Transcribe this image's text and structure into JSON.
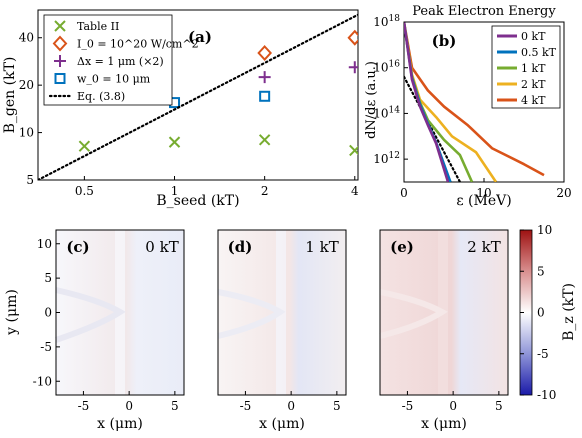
{
  "chart_data": [
    {
      "panel": "(a)",
      "type": "scatter",
      "xlabel": "B_seed (kT)",
      "ylabel": "B_gen (kT)",
      "x_scale": "log",
      "y_scale": "log",
      "xlim": [
        0.35,
        4.1
      ],
      "ylim": [
        5,
        60
      ],
      "x_ticks": [
        0.5,
        1,
        2,
        4
      ],
      "y_ticks": [
        5,
        10,
        20,
        40
      ],
      "legend_position": "top-left",
      "series": [
        {
          "name": "Table II",
          "marker": "x",
          "color": "#77ac30",
          "x": [
            0.5,
            1,
            2,
            4
          ],
          "y": [
            8.2,
            8.7,
            9.0,
            7.7
          ]
        },
        {
          "name": "I_0 = 10^20 W/cm^2",
          "marker": "diamond",
          "color": "#d95319",
          "x": [
            2,
            4
          ],
          "y": [
            32,
            40
          ]
        },
        {
          "name": "Δx = 1 μm (×2)",
          "marker": "plus",
          "color": "#7e2f8e",
          "x": [
            2,
            4
          ],
          "y": [
            22.5,
            26
          ]
        },
        {
          "name": "w_0 = 10 μm",
          "marker": "square",
          "color": "#0072bd",
          "x": [
            1,
            2
          ],
          "y": [
            15.5,
            17
          ]
        },
        {
          "name": "Eq. (3.8)",
          "marker": "dotted-line",
          "color": "#000000",
          "x": [
            0.35,
            4.1
          ],
          "y": [
            5,
            56
          ]
        }
      ]
    },
    {
      "panel": "(b)",
      "type": "line",
      "title": "Peak Electron Energy",
      "xlabel": "ε (MeV)",
      "ylabel": "dN/dε (a.u.)",
      "y_scale": "log",
      "xlim": [
        0,
        20
      ],
      "ylim": [
        100000000000.0,
        1e+18
      ],
      "x_ticks": [
        0,
        10,
        20
      ],
      "y_ticks": [
        "10^12",
        "10^14",
        "10^16",
        "10^18"
      ],
      "legend_position": "top-right",
      "series": [
        {
          "name": "0 kT",
          "color": "#7e2f8e",
          "x": [
            0,
            1,
            2,
            3,
            4,
            5.5
          ],
          "y": [
            1e+18,
            3000000000000000.0,
            200000000000000.0,
            30000000000000.0,
            5000000000000.0,
            100000000000.0
          ]
        },
        {
          "name": "0.5 kT",
          "color": "#0072bd",
          "x": [
            0,
            1,
            2,
            3,
            4,
            5.8
          ],
          "y": [
            1e+18,
            3500000000000000.0,
            250000000000000.0,
            35000000000000.0,
            5500000000000.0,
            100000000000.0
          ]
        },
        {
          "name": "1 kT",
          "color": "#77ac30",
          "x": [
            0,
            1,
            2,
            3,
            5,
            7,
            8.5
          ],
          "y": [
            1e+18,
            4000000000000000.0,
            300000000000000.0,
            50000000000000.0,
            7000000000000.0,
            1500000000000.0,
            100000000000.0
          ]
        },
        {
          "name": "2 kT",
          "color": "#edb120",
          "x": [
            0,
            1,
            2,
            4,
            6,
            9,
            11.5
          ],
          "y": [
            1e+18,
            5000000000000000.0,
            400000000000000.0,
            70000000000000.0,
            10000000000000.0,
            2000000000000.0,
            100000000000.0
          ]
        },
        {
          "name": "4 kT",
          "color": "#d95319",
          "x": [
            0,
            1,
            3,
            5,
            8,
            11,
            15,
            17.5
          ],
          "y": [
            1e+18,
            1e+16,
            1000000000000000.0,
            200000000000000.0,
            30000000000000.0,
            3000000000000.0,
            600000000000.0,
            200000000000.0
          ]
        },
        {
          "name": "",
          "color": "#000000",
          "style": "dotted",
          "x": [
            0,
            7
          ],
          "y": [
            4000000000000000.0,
            100000000000.0
          ]
        }
      ]
    },
    {
      "panel": "(c)",
      "type": "heatmap",
      "label": "0 kT",
      "xlabel": "x (μm)",
      "ylabel": "y (μm)",
      "xlim": [
        -8,
        6
      ],
      "ylim": [
        -12,
        12
      ],
      "x_ticks": [
        -5,
        0,
        5
      ],
      "y_ticks": [
        -10,
        -5,
        0,
        5,
        10
      ]
    },
    {
      "panel": "(d)",
      "type": "heatmap",
      "label": "1 kT",
      "xlabel": "x (μm)",
      "xlim": [
        -8,
        6
      ],
      "ylim": [
        -12,
        12
      ],
      "x_ticks": [
        -5,
        0,
        5
      ]
    },
    {
      "panel": "(e)",
      "type": "heatmap",
      "label": "2 kT",
      "xlabel": "x (μm)",
      "xlim": [
        -8,
        6
      ],
      "ylim": [
        -12,
        12
      ],
      "x_ticks": [
        -5,
        0,
        5
      ],
      "colorbar_label": "B_z (kT)",
      "colorbar_range": [
        -10,
        10
      ],
      "colorbar_ticks": [
        -10,
        -5,
        0,
        5,
        10
      ]
    }
  ]
}
